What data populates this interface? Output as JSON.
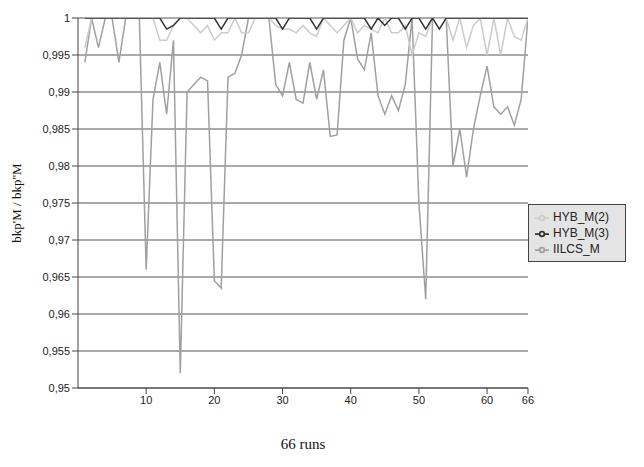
{
  "chart_data": {
    "type": "line",
    "x_label": "66 runs",
    "y_label": "bkp'M / bkp''M",
    "x": [
      1,
      2,
      3,
      4,
      5,
      6,
      7,
      8,
      9,
      10,
      11,
      12,
      13,
      14,
      15,
      16,
      17,
      18,
      19,
      20,
      21,
      22,
      23,
      24,
      25,
      26,
      27,
      28,
      29,
      30,
      31,
      32,
      33,
      34,
      35,
      36,
      37,
      38,
      39,
      40,
      41,
      42,
      43,
      44,
      45,
      46,
      47,
      48,
      49,
      50,
      51,
      52,
      53,
      54,
      55,
      56,
      57,
      58,
      59,
      60,
      61,
      62,
      63,
      64,
      65,
      66
    ],
    "xlim": [
      0,
      66
    ],
    "xticks": [
      10,
      20,
      30,
      40,
      50,
      60,
      66
    ],
    "ylim": [
      0.95,
      1
    ],
    "yticks": [
      {
        "value": 0.95,
        "label": "0,95"
      },
      {
        "value": 0.955,
        "label": "0,955"
      },
      {
        "value": 0.96,
        "label": "0,96"
      },
      {
        "value": 0.965,
        "label": "0,965"
      },
      {
        "value": 0.97,
        "label": "0,97"
      },
      {
        "value": 0.975,
        "label": "0,975"
      },
      {
        "value": 0.98,
        "label": "0,98"
      },
      {
        "value": 0.985,
        "label": "0,985"
      },
      {
        "value": 0.99,
        "label": "0,99"
      },
      {
        "value": 0.995,
        "label": "0,995"
      },
      1
    ],
    "grid": true,
    "legend": "right",
    "series": [
      {
        "name": "IILCS_M",
        "color": "#a0a0a0",
        "values": [
          0.994,
          1,
          0.996,
          1,
          1,
          0.994,
          1,
          1,
          1,
          0.966,
          0.989,
          0.994,
          0.987,
          0.997,
          0.952,
          0.99,
          0.991,
          0.992,
          0.9915,
          0.9645,
          0.9635,
          0.992,
          0.9925,
          0.995,
          1,
          1,
          1,
          1,
          0.991,
          0.9895,
          0.994,
          0.989,
          0.9885,
          0.994,
          0.989,
          0.993,
          0.984,
          0.9842,
          0.997,
          1,
          0.9945,
          0.993,
          0.998,
          0.9895,
          0.987,
          0.9895,
          0.9875,
          0.991,
          1,
          0.975,
          0.962,
          1,
          1,
          1,
          0.98,
          0.985,
          0.9785,
          0.985,
          0.9895,
          0.9935,
          0.988,
          0.987,
          0.988,
          0.9855,
          0.989,
          1
        ]
      },
      {
        "name": "HYB_M(2)",
        "color": "#cccccc",
        "values": [
          0.996,
          1,
          1,
          1,
          1,
          1,
          1,
          1,
          1,
          1,
          1,
          0.997,
          0.997,
          0.999,
          1,
          1,
          0.999,
          0.998,
          0.999,
          0.997,
          0.998,
          0.998,
          1,
          0.998,
          0.998,
          1,
          1,
          1,
          0.999,
          0.9985,
          0.9985,
          0.998,
          0.999,
          0.998,
          0.9975,
          1,
          0.999,
          0.998,
          0.999,
          1,
          0.998,
          0.999,
          0.9985,
          0.998,
          1,
          0.998,
          0.998,
          0.999,
          0.995,
          0.998,
          0.9975,
          1,
          1,
          1,
          0.997,
          1,
          0.996,
          0.999,
          1,
          0.995,
          1,
          0.995,
          1,
          0.9975,
          0.997,
          1
        ]
      },
      {
        "name": "HYB_M(3)",
        "color": "#333333",
        "values": [
          1,
          1,
          1,
          1,
          1,
          1,
          1,
          1,
          1,
          1,
          1,
          1,
          0.9985,
          0.999,
          1,
          1,
          1,
          1,
          1,
          1,
          0.9985,
          1,
          1,
          1,
          1,
          1,
          1,
          1,
          1,
          0.9985,
          1,
          1,
          1,
          1,
          0.9985,
          1,
          1,
          1,
          1,
          1,
          1,
          1,
          0.9985,
          1,
          0.999,
          1,
          1,
          0.9985,
          1,
          1,
          0.9985,
          1,
          0.9985,
          1,
          1,
          1,
          1,
          1,
          1,
          1,
          1,
          1,
          1,
          1,
          1,
          1
        ]
      }
    ]
  }
}
